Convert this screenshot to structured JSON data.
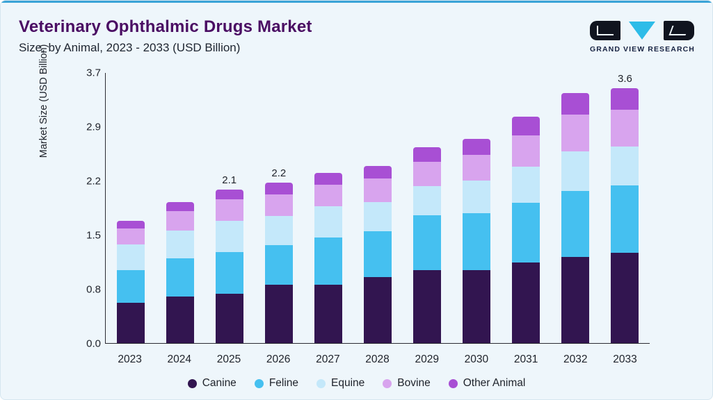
{
  "header": {
    "title": "Veterinary Ophthalmic Drugs Market",
    "subtitle": "Size, by Animal, 2023 - 2033 (USD Billion)",
    "logo_text": "GRAND VIEW RESEARCH"
  },
  "chart_data": {
    "type": "bar",
    "stacked": true,
    "title": "Veterinary Ophthalmic Drugs Market Size, by Animal, 2023 - 2033 (USD Billion)",
    "xlabel": "",
    "ylabel": "Market Size (USD Billion)",
    "ylim": [
      0,
      3.7
    ],
    "yticks": [
      "0.0",
      "0.8",
      "1.5",
      "2.2",
      "2.9",
      "3.7"
    ],
    "grid": false,
    "legend_position": "bottom",
    "categories": [
      "2023",
      "2024",
      "2025",
      "2026",
      "2027",
      "2028",
      "2029",
      "2030",
      "2031",
      "2032",
      "2033"
    ],
    "series": [
      {
        "name": "Canine",
        "color": "#321550",
        "values": [
          0.55,
          0.64,
          0.68,
          0.8,
          0.8,
          0.9,
          1.0,
          1.0,
          1.1,
          1.18,
          1.28
        ]
      },
      {
        "name": "Feline",
        "color": "#45c0f0",
        "values": [
          0.45,
          0.52,
          0.57,
          0.54,
          0.65,
          0.63,
          0.75,
          0.78,
          0.82,
          0.9,
          0.95
        ]
      },
      {
        "name": "Equine",
        "color": "#c4e8fa",
        "values": [
          0.35,
          0.38,
          0.42,
          0.4,
          0.42,
          0.4,
          0.4,
          0.45,
          0.5,
          0.55,
          0.55
        ]
      },
      {
        "name": "Bovine",
        "color": "#d8a4ee",
        "values": [
          0.22,
          0.27,
          0.3,
          0.3,
          0.3,
          0.32,
          0.33,
          0.35,
          0.42,
          0.5,
          0.52
        ]
      },
      {
        "name": "Other Animal",
        "color": "#a84fd4",
        "values": [
          0.1,
          0.12,
          0.13,
          0.16,
          0.16,
          0.18,
          0.2,
          0.22,
          0.26,
          0.29,
          0.3
        ]
      }
    ],
    "bar_labels": {
      "2025": "2.1",
      "2026": "2.2",
      "2033": "3.6"
    }
  },
  "colors": {
    "card_background": "#eef6fb",
    "top_accent": "#39a3d7",
    "title": "#4a0d63",
    "axis": "#2b2b33",
    "logo_triangle": "#2ebce8",
    "logo_dark": "#10141f"
  }
}
